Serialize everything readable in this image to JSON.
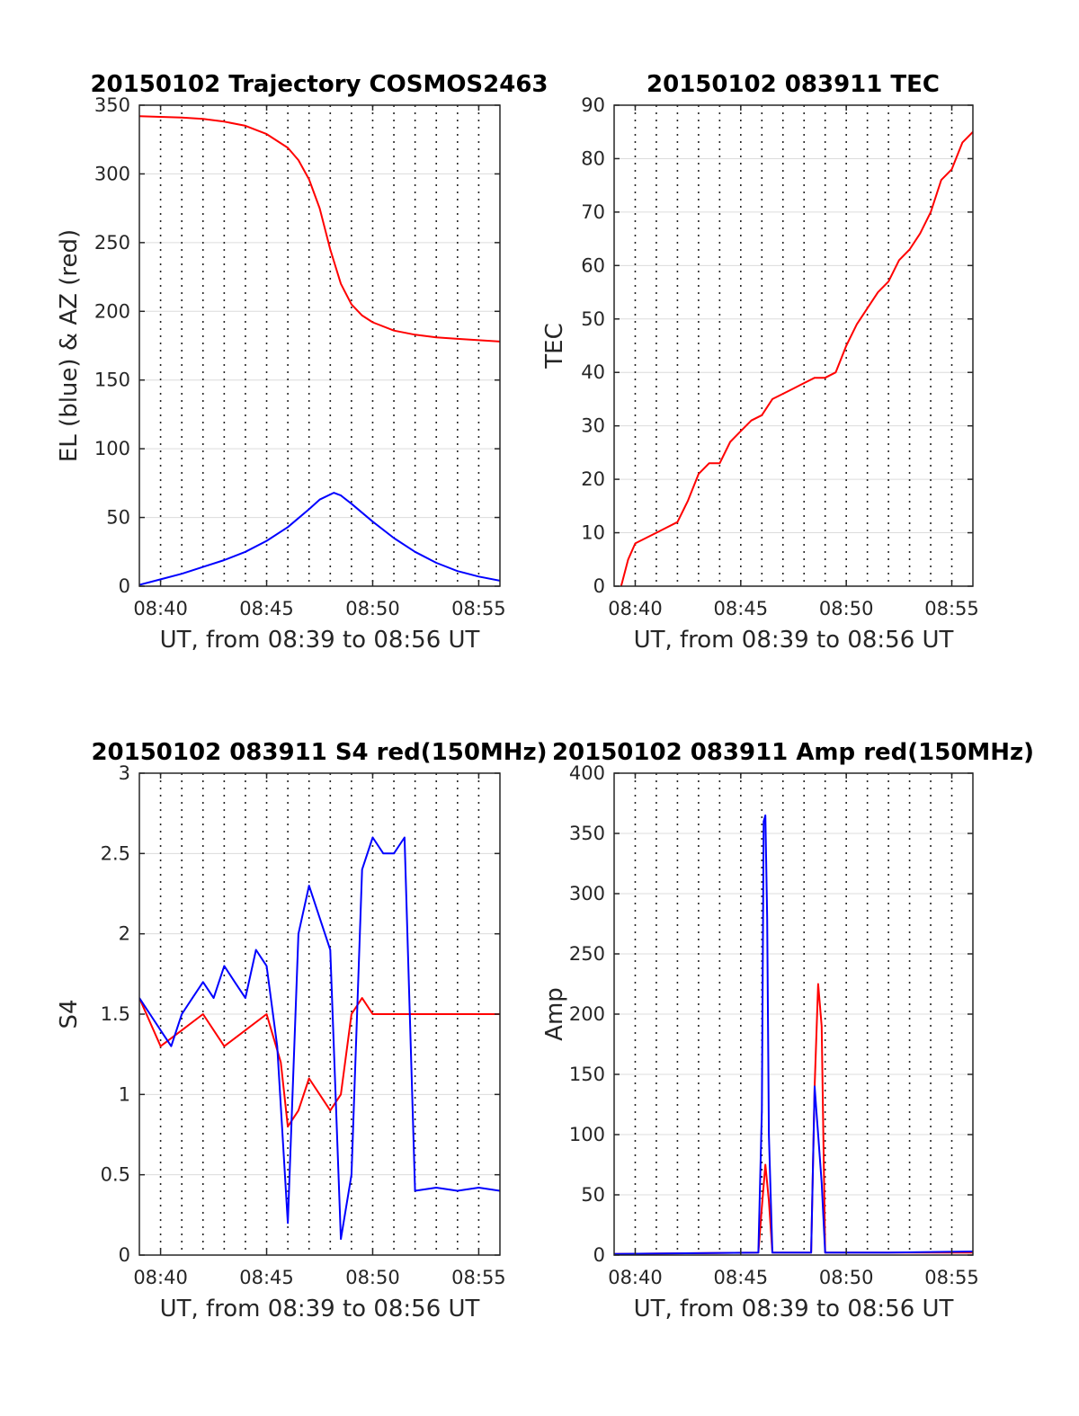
{
  "chart_data": [
    {
      "type": "line",
      "title": "20150102 Trajectory COSMOS2463",
      "xlabel": "UT, from 08:39 to 08:56 UT",
      "ylabel": "EL (blue) & AZ (red)",
      "xlim": [
        "08:39",
        "08:56"
      ],
      "ylim": [
        0,
        350
      ],
      "xticks": [
        "08:40",
        "08:45",
        "08:50",
        "08:55"
      ],
      "yticks": [
        0,
        50,
        100,
        150,
        200,
        250,
        300,
        350
      ],
      "grid": "horizontal solid gridlines; vertical dotted lines every minute",
      "series": [
        {
          "color": "#ff0000",
          "x": [
            "08:39:00",
            "08:40:00",
            "08:41:00",
            "08:42:00",
            "08:43:00",
            "08:44:00",
            "08:45:00",
            "08:46:00",
            "08:46:30",
            "08:47:00",
            "08:47:30",
            "08:48:00",
            "08:48:30",
            "08:49:00",
            "08:49:30",
            "08:50:00",
            "08:51:00",
            "08:52:00",
            "08:53:00",
            "08:54:00",
            "08:55:00",
            "08:56:00"
          ],
          "values": [
            342,
            341.5,
            341,
            340,
            338,
            335,
            329,
            319,
            310,
            296,
            275,
            245,
            220,
            205,
            197,
            192,
            186,
            183,
            181,
            180,
            179,
            178
          ]
        },
        {
          "color": "#0000ff",
          "x": [
            "08:39:00",
            "08:40:00",
            "08:41:00",
            "08:42:00",
            "08:43:00",
            "08:44:00",
            "08:45:00",
            "08:46:00",
            "08:47:00",
            "08:47:30",
            "08:48:10",
            "08:48:30",
            "08:49:00",
            "08:50:00",
            "08:51:00",
            "08:52:00",
            "08:53:00",
            "08:54:00",
            "08:55:00",
            "08:56:00"
          ],
          "values": [
            1,
            5,
            9,
            14,
            19,
            25,
            33,
            43,
            56,
            63,
            68,
            66,
            60,
            47,
            35,
            25,
            17,
            11,
            7,
            4
          ]
        }
      ]
    },
    {
      "type": "line",
      "title": "20150102 083911 TEC",
      "xlabel": "UT, from 08:39 to 08:56 UT",
      "ylabel": "TEC",
      "xlim": [
        "08:39",
        "08:56"
      ],
      "ylim": [
        0,
        90
      ],
      "xticks": [
        "08:40",
        "08:45",
        "08:50",
        "08:55"
      ],
      "yticks": [
        0,
        10,
        20,
        30,
        40,
        50,
        60,
        70,
        80,
        90
      ],
      "grid": "horizontal solid gridlines; vertical dotted lines every minute",
      "series": [
        {
          "color": "#ff0000",
          "x": [
            "08:39:20",
            "08:39:40",
            "08:40:00",
            "08:40:30",
            "08:41:00",
            "08:41:30",
            "08:42:00",
            "08:42:30",
            "08:43:00",
            "08:43:30",
            "08:44:00",
            "08:44:30",
            "08:45:00",
            "08:45:30",
            "08:46:00",
            "08:46:30",
            "08:47:00",
            "08:47:30",
            "08:48:00",
            "08:48:30",
            "08:49:00",
            "08:49:30",
            "08:50:00",
            "08:50:30",
            "08:51:00",
            "08:51:30",
            "08:52:00",
            "08:52:30",
            "08:53:00",
            "08:53:30",
            "08:54:00",
            "08:54:30",
            "08:55:00",
            "08:55:30",
            "08:56:00"
          ],
          "values": [
            0,
            5,
            8,
            9,
            10,
            11,
            12,
            16,
            21,
            23,
            23,
            27,
            29,
            31,
            32,
            35,
            36,
            37,
            38,
            39,
            39,
            40,
            45,
            49,
            52,
            55,
            57,
            61,
            63,
            66,
            70,
            76,
            78,
            83,
            85
          ]
        }
      ]
    },
    {
      "type": "line",
      "title": "20150102 083911 S4 red(150MHz)",
      "xlabel": "UT, from 08:39 to 08:56 UT",
      "ylabel": "S4",
      "xlim": [
        "08:39",
        "08:56"
      ],
      "ylim": [
        0,
        3
      ],
      "xticks": [
        "08:40",
        "08:45",
        "08:50",
        "08:55"
      ],
      "yticks": [
        0,
        0.5,
        1,
        1.5,
        2,
        2.5,
        3
      ],
      "grid": "horizontal solid gridlines; vertical dotted lines every minute",
      "series": [
        {
          "color": "#ff0000",
          "x": [
            "08:39:00",
            "08:40:00",
            "08:41:00",
            "08:42:00",
            "08:43:00",
            "08:44:00",
            "08:45:00",
            "08:45:40",
            "08:46:00",
            "08:46:30",
            "08:47:00",
            "08:47:30",
            "08:48:00",
            "08:48:30",
            "08:49:00",
            "08:49:30",
            "08:50:00",
            "08:51:00",
            "08:52:00",
            "08:53:00",
            "08:54:00",
            "08:55:00",
            "08:56:00"
          ],
          "values": [
            1.6,
            1.3,
            1.4,
            1.5,
            1.3,
            1.4,
            1.5,
            1.2,
            0.8,
            0.9,
            1.1,
            1.0,
            0.9,
            1.0,
            1.5,
            1.6,
            1.5,
            1.5,
            1.5,
            1.5,
            1.5,
            1.5,
            1.5
          ]
        },
        {
          "color": "#0000ff",
          "x": [
            "08:39:00",
            "08:39:30",
            "08:40:00",
            "08:40:30",
            "08:41:00",
            "08:41:30",
            "08:42:00",
            "08:42:30",
            "08:43:00",
            "08:43:30",
            "08:44:00",
            "08:44:30",
            "08:45:00",
            "08:45:30",
            "08:46:00",
            "08:46:30",
            "08:47:00",
            "08:47:30",
            "08:48:00",
            "08:48:30",
            "08:49:00",
            "08:49:30",
            "08:50:00",
            "08:50:30",
            "08:51:00",
            "08:51:30",
            "08:52:00",
            "08:53:00",
            "08:54:00",
            "08:55:00",
            "08:56:00"
          ],
          "values": [
            1.6,
            1.5,
            1.4,
            1.3,
            1.5,
            1.6,
            1.7,
            1.6,
            1.8,
            1.7,
            1.6,
            1.9,
            1.8,
            1.3,
            0.2,
            2.0,
            2.3,
            2.1,
            1.9,
            0.1,
            0.5,
            2.4,
            2.6,
            2.5,
            2.5,
            2.6,
            0.4,
            0.42,
            0.4,
            0.42,
            0.4
          ]
        }
      ]
    },
    {
      "type": "line",
      "title": "20150102 083911 Amp red(150MHz)",
      "xlabel": "UT, from 08:39 to 08:56 UT",
      "ylabel": "Amp",
      "xlim": [
        "08:39",
        "08:56"
      ],
      "ylim": [
        0,
        400
      ],
      "xticks": [
        "08:40",
        "08:45",
        "08:50",
        "08:55"
      ],
      "yticks": [
        0,
        50,
        100,
        150,
        200,
        250,
        300,
        350,
        400
      ],
      "grid": "horizontal solid gridlines; vertical dotted lines every minute",
      "series": [
        {
          "color": "#ff0000",
          "x": [
            "08:39:00",
            "08:45:50",
            "08:46:00",
            "08:46:10",
            "08:46:20",
            "08:46:30",
            "08:48:20",
            "08:48:30",
            "08:48:40",
            "08:48:50",
            "08:49:00",
            "08:56:00"
          ],
          "values": [
            1,
            2,
            40,
            75,
            45,
            2,
            2,
            140,
            225,
            190,
            2,
            2
          ]
        },
        {
          "color": "#0000ff",
          "x": [
            "08:39:00",
            "08:45:50",
            "08:46:00",
            "08:46:05",
            "08:46:10",
            "08:46:15",
            "08:46:20",
            "08:46:30",
            "08:48:20",
            "08:48:30",
            "08:48:35",
            "08:48:40",
            "08:48:50",
            "08:49:00",
            "08:52:00",
            "08:56:00"
          ],
          "values": [
            1,
            2,
            120,
            360,
            365,
            280,
            100,
            2,
            2,
            140,
            120,
            100,
            60,
            2,
            2,
            3
          ]
        }
      ]
    }
  ]
}
